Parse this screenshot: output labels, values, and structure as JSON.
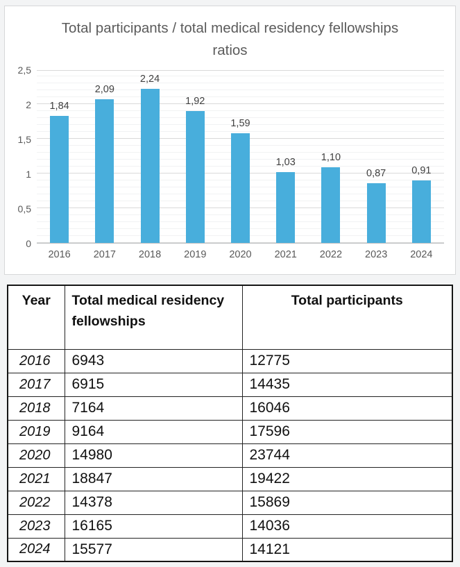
{
  "colors": {
    "bar": "#48aedc",
    "gridline_major": "#d9d9d9",
    "gridline_minor": "#f1f2f3",
    "chart_text": "#595959",
    "table_border": "#151515"
  },
  "chart_data": [
    {
      "type": "bar",
      "title": "Total participants / total medical residency fellowships ratios",
      "categories": [
        "2016",
        "2017",
        "2018",
        "2019",
        "2020",
        "2021",
        "2022",
        "2023",
        "2024"
      ],
      "values": [
        1.84,
        2.09,
        2.24,
        1.92,
        1.59,
        1.03,
        1.1,
        0.87,
        0.91
      ],
      "value_labels": [
        "1,84",
        "2,09",
        "2,24",
        "1,92",
        "1,59",
        "1,03",
        "1,10",
        "0,87",
        "0,91"
      ],
      "xlabel": "",
      "ylabel": "",
      "ylim": [
        0,
        2.5
      ],
      "ytick_labels": [
        "0",
        "0,5",
        "1",
        "1,5",
        "2",
        "2,5"
      ],
      "grid": "horizontal, major every 0.5 with minor every 0.1",
      "legend": "none",
      "bar_color": "#48aedc"
    },
    {
      "type": "table",
      "headers": [
        "Year",
        "Total medical residency fellowships",
        "Total participants"
      ],
      "rows": [
        [
          "2016",
          "6943",
          "12775"
        ],
        [
          "2017",
          "6915",
          "14435"
        ],
        [
          "2018",
          "7164",
          "16046"
        ],
        [
          "2019",
          "9164",
          "17596"
        ],
        [
          "2020",
          "14980",
          "23744"
        ],
        [
          "2021",
          "18847",
          "19422"
        ],
        [
          "2022",
          "14378",
          "15869"
        ],
        [
          "2023",
          "16165",
          "14036"
        ],
        [
          "2024",
          "15577",
          "14121"
        ]
      ]
    }
  ]
}
